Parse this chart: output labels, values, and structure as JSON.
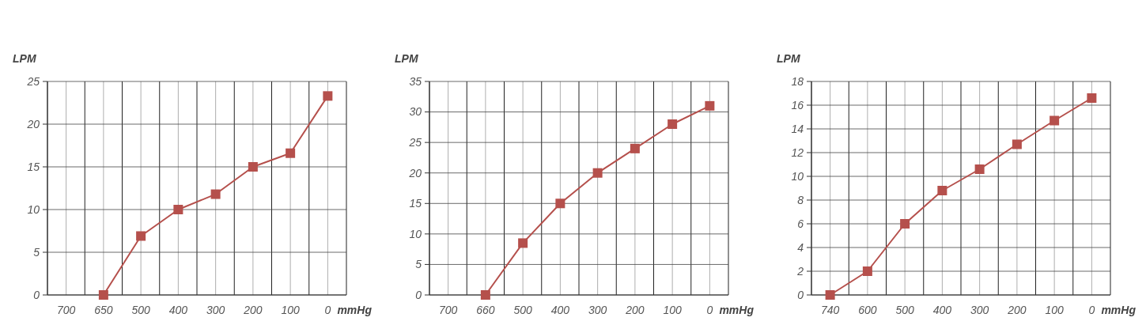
{
  "chart_data": [
    {
      "type": "line",
      "xlabel": "mmHg",
      "ylabel": "LPM",
      "categories": [
        "700",
        "650",
        "500",
        "400",
        "300",
        "200",
        "100",
        "0"
      ],
      "series": [
        {
          "color": "#b5504c",
          "values": [
            null,
            0,
            6.9,
            10,
            11.8,
            15,
            16.6,
            23.3
          ]
        }
      ],
      "ylim": [
        0,
        25
      ],
      "yticks": [
        0,
        5,
        10,
        15,
        20,
        25
      ],
      "grid": true,
      "marker": "square"
    },
    {
      "type": "line",
      "xlabel": "mmHg",
      "ylabel": "LPM",
      "categories": [
        "700",
        "660",
        "500",
        "400",
        "300",
        "200",
        "100",
        "0"
      ],
      "series": [
        {
          "color": "#b5504c",
          "values": [
            null,
            0,
            8.5,
            15,
            20,
            24,
            28,
            31
          ]
        }
      ],
      "ylim": [
        0,
        35
      ],
      "yticks": [
        0,
        5,
        10,
        15,
        20,
        25,
        30,
        35
      ],
      "grid": true,
      "marker": "square"
    },
    {
      "type": "line",
      "xlabel": "mmHg",
      "ylabel": "LPM",
      "categories": [
        "740",
        "600",
        "500",
        "400",
        "300",
        "200",
        "100",
        "0"
      ],
      "series": [
        {
          "color": "#b5504c",
          "values": [
            0,
            2,
            6,
            8.8,
            10.6,
            12.7,
            14.7,
            16.6
          ]
        }
      ],
      "ylim": [
        0,
        18
      ],
      "yticks": [
        0,
        2,
        4,
        6,
        8,
        10,
        12,
        14,
        16,
        18
      ],
      "grid": true,
      "marker": "square"
    }
  ]
}
